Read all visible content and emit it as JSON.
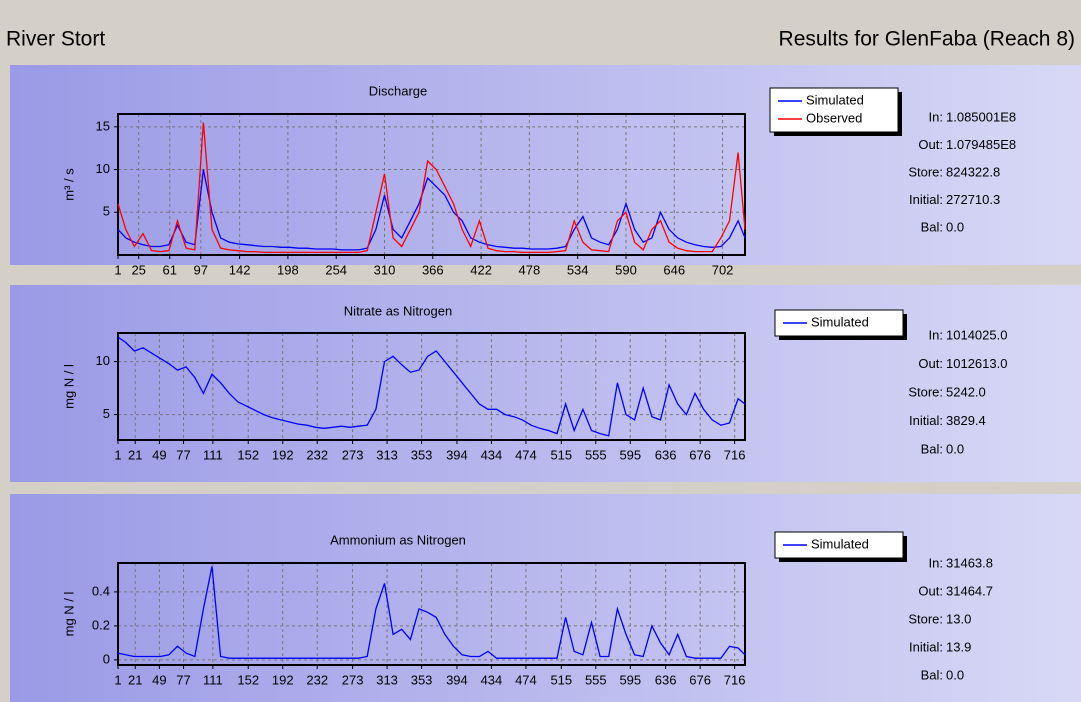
{
  "header": {
    "title": "River Stort",
    "subtitle": "Results for GlenFaba (Reach 8)"
  },
  "chart_data": [
    {
      "type": "line",
      "title": "Discharge",
      "y_label": "m³ / s",
      "grid": true,
      "x": [
        1,
        10,
        20,
        30,
        40,
        50,
        60,
        70,
        80,
        90,
        100,
        110,
        120,
        130,
        140,
        150,
        160,
        170,
        180,
        190,
        200,
        210,
        220,
        230,
        240,
        250,
        260,
        270,
        280,
        290,
        300,
        310,
        320,
        330,
        340,
        350,
        360,
        370,
        380,
        390,
        400,
        410,
        420,
        430,
        440,
        450,
        460,
        470,
        480,
        490,
        500,
        510,
        520,
        530,
        540,
        550,
        560,
        570,
        580,
        590,
        600,
        610,
        620,
        630,
        640,
        650,
        660,
        670,
        680,
        690,
        700,
        710,
        720,
        728
      ],
      "xlim": [
        1,
        728
      ],
      "xticks": [
        1,
        25,
        61,
        97,
        142,
        198,
        254,
        310,
        366,
        422,
        478,
        534,
        590,
        646,
        702
      ],
      "ylim": [
        0,
        16.5
      ],
      "yticks": [
        5,
        10,
        15
      ],
      "series": [
        {
          "name": "Simulated",
          "color": "#0000ff",
          "values": [
            3,
            2,
            1.5,
            1.2,
            1,
            1,
            1.2,
            3.5,
            1.5,
            1.2,
            10,
            5,
            2,
            1.5,
            1.3,
            1.2,
            1.1,
            1,
            1,
            0.9,
            0.9,
            0.8,
            0.8,
            0.7,
            0.7,
            0.7,
            0.6,
            0.6,
            0.6,
            0.8,
            3,
            7,
            3,
            2,
            4,
            6,
            9,
            8,
            7,
            5,
            4,
            2,
            1.5,
            1.2,
            1,
            0.9,
            0.8,
            0.8,
            0.7,
            0.7,
            0.7,
            0.8,
            1,
            3,
            4.5,
            2,
            1.5,
            1.2,
            3,
            6,
            3,
            1.5,
            2,
            5,
            3,
            2,
            1.5,
            1.2,
            1,
            0.9,
            1,
            2,
            4,
            2
          ]
        },
        {
          "name": "Observed",
          "color": "#ff0000",
          "values": [
            6,
            3,
            1,
            2.5,
            0.5,
            0.4,
            0.5,
            4,
            0.8,
            0.6,
            15.5,
            3,
            0.8,
            0.6,
            0.5,
            0.4,
            0.4,
            0.3,
            0.3,
            0.3,
            0.3,
            0.3,
            0.3,
            0.3,
            0.3,
            0.3,
            0.3,
            0.3,
            0.3,
            0.5,
            5,
            9.5,
            2,
            1,
            3,
            5,
            11,
            10,
            8,
            6,
            3,
            1,
            4,
            0.8,
            0.5,
            0.4,
            0.4,
            0.3,
            0.3,
            0.3,
            0.3,
            0.4,
            0.5,
            4,
            1.5,
            0.6,
            0.5,
            0.4,
            4,
            5,
            1.5,
            0.6,
            3,
            4,
            1.5,
            0.8,
            0.5,
            0.4,
            0.4,
            0.4,
            2,
            4,
            12,
            3
          ]
        }
      ],
      "stats": [
        {
          "label": "In:",
          "value": "1.085001E8"
        },
        {
          "label": "Out:",
          "value": "1.079485E8"
        },
        {
          "label": "Store:",
          "value": "824322.8"
        },
        {
          "label": "Initial:",
          "value": "272710.3"
        },
        {
          "label": "Bal:",
          "value": "0.0"
        }
      ]
    },
    {
      "type": "line",
      "title": "Nitrate as Nitrogen",
      "y_label": "mg N / l",
      "grid": true,
      "x": [
        1,
        10,
        20,
        30,
        40,
        50,
        60,
        70,
        80,
        90,
        100,
        110,
        120,
        130,
        140,
        150,
        160,
        170,
        180,
        190,
        200,
        210,
        220,
        230,
        240,
        250,
        260,
        270,
        280,
        290,
        300,
        310,
        320,
        330,
        340,
        350,
        360,
        370,
        380,
        390,
        400,
        410,
        420,
        430,
        440,
        450,
        460,
        470,
        480,
        490,
        500,
        510,
        520,
        530,
        540,
        550,
        560,
        570,
        580,
        590,
        600,
        610,
        620,
        630,
        640,
        650,
        660,
        670,
        680,
        690,
        700,
        710,
        720,
        728
      ],
      "xlim": [
        1,
        728
      ],
      "xticks": [
        1,
        21,
        49,
        77,
        111,
        152,
        192,
        232,
        273,
        313,
        353,
        394,
        434,
        474,
        515,
        555,
        595,
        636,
        676,
        716
      ],
      "ylim": [
        2.6,
        12.7
      ],
      "yticks": [
        5,
        10
      ],
      "series": [
        {
          "name": "Simulated",
          "color": "#0000ff",
          "values": [
            12.3,
            11.8,
            11,
            11.3,
            10.8,
            10.3,
            9.8,
            9.2,
            9.5,
            8.5,
            7,
            8.8,
            8,
            7,
            6.2,
            5.8,
            5.4,
            5,
            4.7,
            4.5,
            4.3,
            4.1,
            4,
            3.8,
            3.7,
            3.8,
            3.9,
            3.8,
            3.9,
            4,
            5.5,
            10,
            10.5,
            9.7,
            9,
            9.2,
            10.5,
            11,
            10,
            9,
            8,
            7,
            6,
            5.5,
            5.5,
            5,
            4.8,
            4.5,
            4,
            3.7,
            3.5,
            3.2,
            6,
            3.5,
            5.5,
            3.5,
            3.2,
            3,
            8,
            5,
            4.5,
            7.5,
            4.8,
            4.5,
            7.8,
            6,
            5,
            7,
            5.5,
            4.5,
            4,
            4.2,
            6.5,
            6
          ]
        }
      ],
      "stats": [
        {
          "label": "In:",
          "value": "1014025.0"
        },
        {
          "label": "Out:",
          "value": "1012613.0"
        },
        {
          "label": "Store:",
          "value": "5242.0"
        },
        {
          "label": "Initial:",
          "value": "3829.4"
        },
        {
          "label": "Bal:",
          "value": "0.0"
        }
      ]
    },
    {
      "type": "line",
      "title": "Ammonium as Nitrogen",
      "y_label": "mg N / l",
      "grid": true,
      "x": [
        1,
        10,
        20,
        30,
        40,
        50,
        60,
        70,
        80,
        90,
        100,
        110,
        120,
        130,
        140,
        150,
        160,
        170,
        180,
        190,
        200,
        210,
        220,
        230,
        240,
        250,
        260,
        270,
        280,
        290,
        300,
        310,
        320,
        330,
        340,
        350,
        360,
        370,
        380,
        390,
        400,
        410,
        420,
        430,
        440,
        450,
        460,
        470,
        480,
        490,
        500,
        510,
        520,
        530,
        540,
        550,
        560,
        570,
        580,
        590,
        600,
        610,
        620,
        630,
        640,
        650,
        660,
        670,
        680,
        690,
        700,
        710,
        720,
        728
      ],
      "xlim": [
        1,
        728
      ],
      "xticks": [
        1,
        21,
        49,
        77,
        111,
        152,
        192,
        232,
        273,
        313,
        353,
        394,
        434,
        474,
        515,
        555,
        595,
        636,
        676,
        716
      ],
      "ylim": [
        -0.03,
        0.57
      ],
      "yticks": [
        0,
        0.2,
        0.4
      ],
      "series": [
        {
          "name": "Simulated",
          "color": "#0000ff",
          "values": [
            0.04,
            0.03,
            0.02,
            0.02,
            0.02,
            0.02,
            0.03,
            0.08,
            0.04,
            0.02,
            0.3,
            0.55,
            0.02,
            0.01,
            0.01,
            0.01,
            0.01,
            0.01,
            0.01,
            0.01,
            0.01,
            0.01,
            0.01,
            0.01,
            0.01,
            0.01,
            0.01,
            0.01,
            0.01,
            0.02,
            0.3,
            0.45,
            0.15,
            0.18,
            0.12,
            0.3,
            0.28,
            0.25,
            0.15,
            0.08,
            0.03,
            0.02,
            0.02,
            0.05,
            0.01,
            0.01,
            0.01,
            0.01,
            0.01,
            0.01,
            0.01,
            0.01,
            0.25,
            0.05,
            0.03,
            0.22,
            0.02,
            0.02,
            0.3,
            0.15,
            0.03,
            0.02,
            0.2,
            0.1,
            0.03,
            0.15,
            0.02,
            0.01,
            0.01,
            0.01,
            0.01,
            0.08,
            0.07,
            0.03
          ]
        }
      ],
      "stats": [
        {
          "label": "In:",
          "value": "31463.8"
        },
        {
          "label": "Out:",
          "value": "31464.7"
        },
        {
          "label": "Store:",
          "value": "13.0"
        },
        {
          "label": "Initial:",
          "value": "13.9"
        },
        {
          "label": "Bal:",
          "value": "0.0"
        }
      ]
    }
  ]
}
